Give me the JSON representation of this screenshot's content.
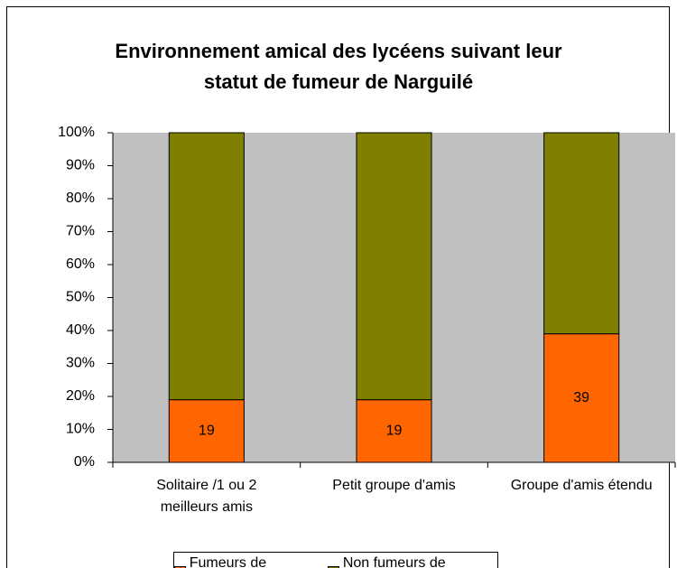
{
  "chart_data": {
    "type": "stacked_bar_100",
    "title": "Environnement amical des lycéens suivant leur statut de fumeur de Narguilé",
    "categories": [
      "Solitaire /1 ou 2 meilleurs amis",
      "Petit groupe d'amis",
      "Groupe d'amis étendu"
    ],
    "series": [
      {
        "name": "Fumeurs de narguilé",
        "color": "#ff6600",
        "values": [
          19,
          19,
          39
        ],
        "show_labels": true
      },
      {
        "name": "Non fumeurs de narguilé",
        "color": "#808000",
        "values": [
          81,
          81,
          61
        ],
        "show_labels": false
      }
    ],
    "ylim": [
      0,
      100
    ],
    "yticks": [
      {
        "value": 0,
        "label": "0%"
      },
      {
        "value": 10,
        "label": "10%"
      },
      {
        "value": 20,
        "label": "20%"
      },
      {
        "value": 30,
        "label": "30%"
      },
      {
        "value": 40,
        "label": "40%"
      },
      {
        "value": 50,
        "label": "50%"
      },
      {
        "value": 60,
        "label": "60%"
      },
      {
        "value": 70,
        "label": "70%"
      },
      {
        "value": 80,
        "label": "80%"
      },
      {
        "value": 90,
        "label": "90%"
      },
      {
        "value": 100,
        "label": "100%"
      }
    ],
    "plot_background": "#c0c0c0",
    "legend": "bottom"
  }
}
